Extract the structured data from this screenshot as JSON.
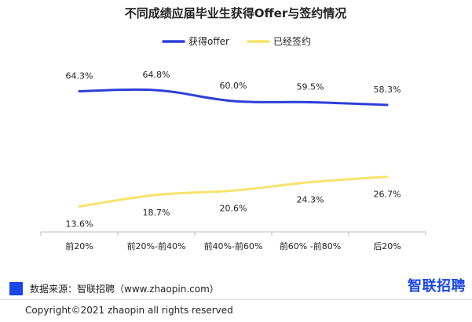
{
  "colors": {
    "offer_line": "#2b3fd8",
    "contract_line": "#f7e36b",
    "source_square": "#1947e5",
    "brand": "#1947e5",
    "axis": "#bfbfbf"
  },
  "footer": {
    "source": "数据来源：智联招聘（www.zhaopin.com）",
    "brand": "智联招聘",
    "copyright": "Copyright©2021 zhaopin all rights reserved"
  },
  "chart_data": {
    "type": "line",
    "title": "不同成绩应届毕业生获得Offer与签约情况",
    "categories": [
      "前20%",
      "前20%-前40%",
      "前40%-前60%",
      "前60% -前80%",
      "后20%"
    ],
    "series": [
      {
        "name": "获得offer",
        "values": [
          64.3,
          64.8,
          60.0,
          59.5,
          58.3
        ],
        "labels": [
          "64.3%",
          "64.8%",
          "60.0%",
          "59.5%",
          "58.3%"
        ],
        "color": "#2b3fd8"
      },
      {
        "name": "已经签约",
        "values": [
          13.6,
          18.7,
          20.6,
          24.3,
          26.7
        ],
        "labels": [
          "13.6%",
          "18.7%",
          "20.6%",
          "24.3%",
          "26.7%"
        ],
        "color": "#f7e36b"
      }
    ],
    "legend_position": "top-center",
    "grid": false,
    "smooth": true
  }
}
